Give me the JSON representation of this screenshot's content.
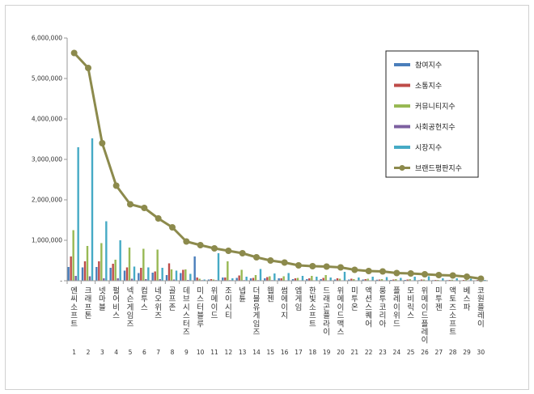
{
  "chart_data": {
    "type": "bar",
    "title": "",
    "xlabel": "",
    "ylabel": "",
    "ylim": [
      0,
      6000000
    ],
    "yticks": [
      0,
      1000000,
      2000000,
      3000000,
      4000000,
      5000000,
      6000000
    ],
    "ytick_labels": [
      "-",
      "1,000,000",
      "2,000,000",
      "3,000,000",
      "4,000,000",
      "5,000,000",
      "6,000,000"
    ],
    "grid": false,
    "legend": "top-right",
    "numbers": [
      "1",
      "2",
      "3",
      "4",
      "5",
      "6",
      "7",
      "8",
      "9",
      "10",
      "11",
      "12",
      "13",
      "14",
      "15",
      "16",
      "17",
      "18",
      "19",
      "20",
      "21",
      "22",
      "23",
      "24",
      "25",
      "26",
      "27",
      "28",
      "29",
      "30"
    ],
    "categories": [
      "엔씨소프트",
      "크래프톤",
      "넷마블",
      "펄어비스",
      "넥슨게임즈",
      "컴투스",
      "네오위즈",
      "골프존",
      "데브시스터즈",
      "미스터블루",
      "위메이드",
      "조이시티",
      "넵튠",
      "더블유게임즈",
      "웹젠",
      "썸에이지",
      "엠게임",
      "한빛소프트",
      "드래곤플라이",
      "위메이드맥스",
      "미투온",
      "액션스퀘어",
      "룽투코리아",
      "플레이위드",
      "모비릭스",
      "위메이드플레이",
      "미투젠",
      "액토즈소프트",
      "베스파",
      "코원플레이"
    ],
    "series": [
      {
        "name": "참여지수",
        "color": "#4a7ebb",
        "type": "bar",
        "values": [
          340000,
          330000,
          340000,
          320000,
          250000,
          190000,
          200000,
          140000,
          190000,
          600000,
          30000,
          80000,
          70000,
          60000,
          60000,
          60000,
          40000,
          40000,
          40000,
          30000,
          30000,
          30000,
          25000,
          20000,
          20000,
          15000,
          15000,
          15000,
          10000,
          10000
        ]
      },
      {
        "name": "소통지수",
        "color": "#be4b48",
        "type": "bar",
        "values": [
          600000,
          480000,
          480000,
          420000,
          330000,
          320000,
          230000,
          430000,
          270000,
          80000,
          40000,
          80000,
          130000,
          70000,
          90000,
          60000,
          60000,
          60000,
          70000,
          60000,
          50000,
          40000,
          30000,
          30000,
          30000,
          30000,
          20000,
          20000,
          20000,
          20000
        ]
      },
      {
        "name": "커뮤니티지수",
        "color": "#98b954",
        "type": "bar",
        "values": [
          1250000,
          860000,
          930000,
          520000,
          820000,
          790000,
          770000,
          280000,
          280000,
          50000,
          30000,
          480000,
          270000,
          140000,
          110000,
          110000,
          70000,
          120000,
          140000,
          50000,
          40000,
          50000,
          40000,
          40000,
          40000,
          30000,
          20000,
          25000,
          20000,
          20000
        ]
      },
      {
        "name": "사회공헌지수",
        "color": "#7d60a0",
        "type": "bar",
        "values": [
          120000,
          110000,
          60000,
          60000,
          50000,
          40000,
          40000,
          30000,
          20000,
          15000,
          15000,
          15000,
          15000,
          15000,
          15000,
          10000,
          10000,
          10000,
          10000,
          10000,
          10000,
          10000,
          10000,
          10000,
          10000,
          10000,
          10000,
          10000,
          10000,
          10000
        ]
      },
      {
        "name": "시장지수",
        "color": "#46aac5",
        "type": "bar",
        "values": [
          3300000,
          3520000,
          1470000,
          1000000,
          350000,
          330000,
          320000,
          250000,
          170000,
          30000,
          680000,
          60000,
          100000,
          290000,
          180000,
          190000,
          120000,
          100000,
          80000,
          220000,
          80000,
          100000,
          90000,
          70000,
          100000,
          110000,
          60000,
          60000,
          50000,
          20000
        ]
      },
      {
        "name": "브랜드평판지수",
        "color": "#8c8a4c",
        "type": "line",
        "values": [
          5630000,
          5260000,
          3400000,
          2350000,
          1890000,
          1800000,
          1540000,
          1320000,
          970000,
          880000,
          800000,
          740000,
          680000,
          580000,
          500000,
          450000,
          380000,
          360000,
          350000,
          330000,
          270000,
          240000,
          230000,
          190000,
          180000,
          160000,
          140000,
          130000,
          100000,
          50000
        ]
      }
    ]
  }
}
